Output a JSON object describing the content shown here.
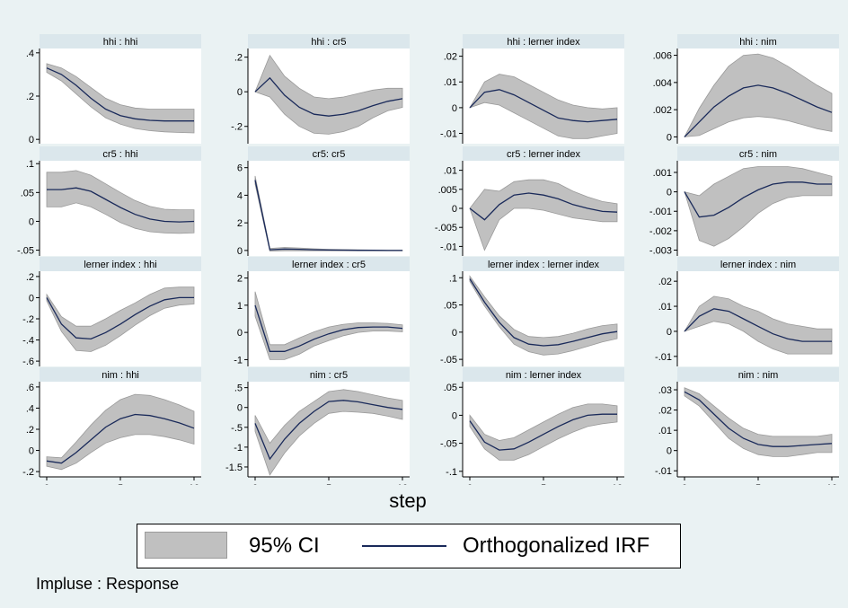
{
  "chart_data": {
    "type": "line",
    "x": [
      0,
      1,
      2,
      3,
      4,
      5,
      6,
      7,
      8,
      9,
      10
    ],
    "xlabel": "step",
    "xticks": [
      0,
      5,
      10
    ],
    "panels": [
      {
        "title": "hhi : hhi",
        "ylim": [
          -0.02,
          0.42
        ],
        "yticks": [
          {
            "v": 0.4,
            "l": ".4"
          },
          {
            "v": 0.2,
            "l": ".2"
          },
          {
            "v": 0,
            "l": "0"
          }
        ],
        "irf": [
          0.33,
          0.3,
          0.25,
          0.19,
          0.14,
          0.11,
          0.095,
          0.088,
          0.085,
          0.085,
          0.085
        ],
        "lo": [
          0.31,
          0.27,
          0.21,
          0.15,
          0.1,
          0.07,
          0.05,
          0.04,
          0.035,
          0.032,
          0.03
        ],
        "hi": [
          0.35,
          0.33,
          0.29,
          0.24,
          0.19,
          0.16,
          0.145,
          0.14,
          0.14,
          0.14,
          0.14
        ]
      },
      {
        "title": "hhi : cr5",
        "ylim": [
          -0.3,
          0.25
        ],
        "yticks": [
          {
            "v": 0.2,
            "l": ".2"
          },
          {
            "v": 0,
            "l": "0"
          },
          {
            "v": -0.2,
            "l": "-.2"
          }
        ],
        "irf": [
          0,
          0.08,
          -0.02,
          -0.09,
          -0.13,
          -0.14,
          -0.13,
          -0.11,
          -0.08,
          -0.055,
          -0.04
        ],
        "lo": [
          0,
          -0.03,
          -0.13,
          -0.2,
          -0.24,
          -0.245,
          -0.23,
          -0.2,
          -0.15,
          -0.11,
          -0.09
        ],
        "hi": [
          0,
          0.21,
          0.09,
          0.02,
          -0.03,
          -0.04,
          -0.03,
          -0.01,
          0.01,
          0.02,
          0.02
        ]
      },
      {
        "title": "hhi : lerner index",
        "ylim": [
          -0.014,
          0.023
        ],
        "yticks": [
          {
            "v": 0.02,
            "l": ".02"
          },
          {
            "v": 0.01,
            "l": ".01"
          },
          {
            "v": 0,
            "l": "0"
          },
          {
            "v": -0.01,
            "l": "-.01"
          }
        ],
        "irf": [
          0,
          0.006,
          0.007,
          0.005,
          0.002,
          -0.001,
          -0.004,
          -0.005,
          -0.0055,
          -0.005,
          -0.0045
        ],
        "lo": [
          0,
          0.002,
          0.001,
          -0.002,
          -0.005,
          -0.008,
          -0.011,
          -0.012,
          -0.012,
          -0.011,
          -0.01
        ],
        "hi": [
          0,
          0.01,
          0.013,
          0.012,
          0.009,
          0.006,
          0.003,
          0.001,
          0,
          -0.0005,
          0
        ]
      },
      {
        "title": "hhi : nim",
        "ylim": [
          -0.0005,
          0.0065
        ],
        "yticks": [
          {
            "v": 0.006,
            "l": ".006"
          },
          {
            "v": 0.004,
            "l": ".004"
          },
          {
            "v": 0.002,
            "l": ".002"
          },
          {
            "v": 0,
            "l": "0"
          }
        ],
        "irf": [
          0,
          0.0011,
          0.0022,
          0.003,
          0.0036,
          0.0038,
          0.0036,
          0.0032,
          0.0027,
          0.0022,
          0.0018
        ],
        "lo": [
          0,
          0.0001,
          0.0006,
          0.0011,
          0.0014,
          0.0015,
          0.0014,
          0.0012,
          0.0009,
          0.0006,
          0.0004
        ],
        "hi": [
          0,
          0.0021,
          0.0038,
          0.0052,
          0.006,
          0.0061,
          0.0058,
          0.0052,
          0.0045,
          0.0038,
          0.0032
        ]
      },
      {
        "title": "cr5 : hhi",
        "ylim": [
          -0.06,
          0.105
        ],
        "yticks": [
          {
            "v": 0.1,
            "l": ".1"
          },
          {
            "v": 0.05,
            "l": ".05"
          },
          {
            "v": 0,
            "l": "0"
          },
          {
            "v": -0.05,
            "l": "-.05"
          }
        ],
        "irf": [
          0.055,
          0.055,
          0.058,
          0.052,
          0.038,
          0.024,
          0.012,
          0.004,
          0,
          -0.001,
          0
        ],
        "lo": [
          0.025,
          0.025,
          0.032,
          0.025,
          0.012,
          -0.002,
          -0.012,
          -0.018,
          -0.02,
          -0.021,
          -0.02
        ],
        "hi": [
          0.085,
          0.085,
          0.088,
          0.08,
          0.065,
          0.05,
          0.036,
          0.026,
          0.021,
          0.02,
          0.02
        ]
      },
      {
        "title": "cr5: cr5",
        "ylim": [
          -0.4,
          6.5
        ],
        "yticks": [
          {
            "v": 6,
            "l": "6"
          },
          {
            "v": 4,
            "l": "4"
          },
          {
            "v": 2,
            "l": "2"
          },
          {
            "v": 0,
            "l": "0"
          }
        ],
        "irf": [
          5.1,
          0.05,
          0.1,
          0.08,
          0.05,
          0.03,
          0.02,
          0.01,
          0.01,
          0,
          0
        ],
        "lo": [
          4.8,
          -0.05,
          -0.02,
          -0.02,
          -0.02,
          -0.02,
          -0.02,
          -0.02,
          -0.02,
          -0.02,
          -0.02
        ],
        "hi": [
          5.4,
          0.15,
          0.22,
          0.18,
          0.12,
          0.08,
          0.06,
          0.04,
          0.03,
          0.02,
          0.02
        ]
      },
      {
        "title": "cr5 : lerner index",
        "ylim": [
          -0.0125,
          0.0125
        ],
        "yticks": [
          {
            "v": 0.01,
            "l": ".01"
          },
          {
            "v": 0.005,
            "l": ".005"
          },
          {
            "v": 0,
            "l": "0"
          },
          {
            "v": -0.005,
            "l": "-.005"
          },
          {
            "v": -0.01,
            "l": "-.01"
          }
        ],
        "irf": [
          0,
          -0.003,
          0.001,
          0.0035,
          0.004,
          0.0035,
          0.0025,
          0.001,
          0,
          -0.0008,
          -0.001
        ],
        "lo": [
          0,
          -0.011,
          -0.003,
          0,
          0,
          -0.0005,
          -0.0015,
          -0.0025,
          -0.003,
          -0.0035,
          -0.0035
        ],
        "hi": [
          0,
          0.005,
          0.0045,
          0.007,
          0.0075,
          0.0075,
          0.0065,
          0.0045,
          0.003,
          0.0018,
          0.0012
        ]
      },
      {
        "title": "cr5 : nim",
        "ylim": [
          -0.0033,
          0.0016
        ],
        "yticks": [
          {
            "v": 0.001,
            "l": ".001"
          },
          {
            "v": 0,
            "l": "0"
          },
          {
            "v": -0.001,
            "l": "-.001"
          },
          {
            "v": -0.002,
            "l": "-.002"
          },
          {
            "v": -0.003,
            "l": "-.003"
          }
        ],
        "irf": [
          0,
          -0.0013,
          -0.0012,
          -0.0008,
          -0.0003,
          0.0001,
          0.0004,
          0.0005,
          0.0005,
          0.0004,
          0.0004
        ],
        "lo": [
          0,
          -0.0025,
          -0.0028,
          -0.0024,
          -0.0018,
          -0.0011,
          -0.0006,
          -0.0003,
          -0.0002,
          -0.0002,
          -0.0002
        ],
        "hi": [
          0,
          -0.0002,
          0.0004,
          0.0008,
          0.0012,
          0.0013,
          0.0013,
          0.0013,
          0.0012,
          0.001,
          0.0008
        ]
      },
      {
        "title": "lerner index : hhi",
        "ylim": [
          -0.65,
          0.25
        ],
        "yticks": [
          {
            "v": 0.2,
            "l": ".2"
          },
          {
            "v": 0,
            "l": "0"
          },
          {
            "v": -0.2,
            "l": "-.2"
          },
          {
            "v": -0.4,
            "l": "-.4"
          },
          {
            "v": -0.6,
            "l": "-.6"
          }
        ],
        "irf": [
          0,
          -0.25,
          -0.38,
          -0.39,
          -0.33,
          -0.25,
          -0.16,
          -0.08,
          -0.02,
          0,
          0
        ],
        "lo": [
          -0.03,
          -0.32,
          -0.5,
          -0.51,
          -0.45,
          -0.36,
          -0.26,
          -0.17,
          -0.1,
          -0.07,
          -0.06
        ],
        "hi": [
          0.03,
          -0.18,
          -0.27,
          -0.27,
          -0.2,
          -0.12,
          -0.05,
          0.03,
          0.09,
          0.1,
          0.1
        ]
      },
      {
        "title": "lerner index : cr5",
        "ylim": [
          -1.25,
          2.25
        ],
        "yticks": [
          {
            "v": 2,
            "l": "2"
          },
          {
            "v": 1,
            "l": "1"
          },
          {
            "v": 0,
            "l": "0"
          },
          {
            "v": -1,
            "l": "-1"
          }
        ],
        "irf": [
          1.0,
          -0.7,
          -0.7,
          -0.5,
          -0.25,
          -0.05,
          0.1,
          0.18,
          0.2,
          0.2,
          0.15
        ],
        "lo": [
          0.6,
          -1.0,
          -1.0,
          -0.8,
          -0.5,
          -0.3,
          -0.12,
          0,
          0.05,
          0.05,
          0.02
        ],
        "hi": [
          1.5,
          -0.45,
          -0.45,
          -0.2,
          0.02,
          0.2,
          0.3,
          0.35,
          0.35,
          0.33,
          0.28
        ]
      },
      {
        "title": "lerner index : lerner index",
        "ylim": [
          -0.063,
          0.112
        ],
        "yticks": [
          {
            "v": 0.1,
            "l": ".1"
          },
          {
            "v": 0.05,
            "l": ".05"
          },
          {
            "v": 0,
            "l": "0"
          },
          {
            "v": -0.05,
            "l": "-.05"
          }
        ],
        "irf": [
          0.098,
          0.055,
          0.018,
          -0.01,
          -0.022,
          -0.025,
          -0.023,
          -0.017,
          -0.01,
          -0.003,
          0.001
        ],
        "lo": [
          0.093,
          0.048,
          0.01,
          -0.022,
          -0.036,
          -0.042,
          -0.04,
          -0.034,
          -0.026,
          -0.018,
          -0.012
        ],
        "hi": [
          0.103,
          0.065,
          0.03,
          0.005,
          -0.008,
          -0.01,
          -0.008,
          -0.002,
          0.006,
          0.012,
          0.015
        ]
      },
      {
        "title": "lerner index : nim",
        "ylim": [
          -0.014,
          0.024
        ],
        "yticks": [
          {
            "v": 0.02,
            "l": ".02"
          },
          {
            "v": 0.01,
            "l": ".01"
          },
          {
            "v": 0,
            "l": "0"
          },
          {
            "v": -0.01,
            "l": "-.01"
          }
        ],
        "irf": [
          0,
          0.006,
          0.009,
          0.008,
          0.005,
          0.002,
          -0.001,
          -0.003,
          -0.004,
          -0.004,
          -0.004
        ],
        "lo": [
          0,
          0.002,
          0.004,
          0.003,
          0,
          -0.004,
          -0.007,
          -0.009,
          -0.009,
          -0.009,
          -0.009
        ],
        "hi": [
          0,
          0.01,
          0.014,
          0.013,
          0.01,
          0.008,
          0.005,
          0.003,
          0.002,
          0.001,
          0.001
        ]
      },
      {
        "title": "nim : hhi",
        "ylim": [
          -0.25,
          0.65
        ],
        "yticks": [
          {
            "v": 0.6,
            "l": ".6"
          },
          {
            "v": 0.4,
            "l": ".4"
          },
          {
            "v": 0.2,
            "l": ".2"
          },
          {
            "v": 0,
            "l": "0"
          },
          {
            "v": -0.2,
            "l": "-.2"
          }
        ],
        "irf": [
          -0.1,
          -0.12,
          -0.02,
          0.1,
          0.22,
          0.3,
          0.34,
          0.33,
          0.3,
          0.26,
          0.21
        ],
        "lo": [
          -0.15,
          -0.18,
          -0.12,
          -0.02,
          0.07,
          0.12,
          0.15,
          0.15,
          0.13,
          0.1,
          0.06
        ],
        "hi": [
          -0.06,
          -0.07,
          0.08,
          0.24,
          0.38,
          0.48,
          0.53,
          0.52,
          0.48,
          0.43,
          0.37
        ]
      },
      {
        "title": "nim : cr5",
        "ylim": [
          -1.75,
          0.65
        ],
        "yticks": [
          {
            "v": 0.5,
            "l": ".5"
          },
          {
            "v": 0,
            "l": "0"
          },
          {
            "v": -0.5,
            "l": "-.5"
          },
          {
            "v": -1,
            "l": "-1"
          },
          {
            "v": -1.5,
            "l": "-1.5"
          }
        ],
        "irf": [
          -0.4,
          -1.3,
          -0.8,
          -0.4,
          -0.1,
          0.15,
          0.18,
          0.14,
          0.07,
          0,
          -0.05
        ],
        "lo": [
          -0.6,
          -1.7,
          -1.15,
          -0.72,
          -0.4,
          -0.15,
          -0.1,
          -0.12,
          -0.15,
          -0.22,
          -0.3
        ],
        "hi": [
          -0.2,
          -0.9,
          -0.45,
          -0.1,
          0.15,
          0.4,
          0.45,
          0.4,
          0.32,
          0.24,
          0.18
        ]
      },
      {
        "title": "nim : lerner index",
        "ylim": [
          -0.11,
          0.06
        ],
        "yticks": [
          {
            "v": 0.05,
            "l": ".05"
          },
          {
            "v": 0,
            "l": "0"
          },
          {
            "v": -0.05,
            "l": "-.05"
          },
          {
            "v": -0.1,
            "l": "-.1"
          }
        ],
        "irf": [
          -0.01,
          -0.048,
          -0.062,
          -0.06,
          -0.048,
          -0.034,
          -0.02,
          -0.008,
          0,
          0.002,
          0.002
        ],
        "lo": [
          -0.02,
          -0.06,
          -0.08,
          -0.08,
          -0.07,
          -0.056,
          -0.042,
          -0.03,
          -0.02,
          -0.015,
          -0.012
        ],
        "hi": [
          0,
          -0.034,
          -0.045,
          -0.04,
          -0.026,
          -0.012,
          0.002,
          0.014,
          0.02,
          0.02,
          0.017
        ]
      },
      {
        "title": "nim : nim",
        "ylim": [
          -0.013,
          0.034
        ],
        "yticks": [
          {
            "v": 0.03,
            "l": ".03"
          },
          {
            "v": 0.02,
            "l": ".02"
          },
          {
            "v": 0.01,
            "l": ".01"
          },
          {
            "v": 0,
            "l": "0"
          },
          {
            "v": -0.01,
            "l": "-.01"
          }
        ],
        "irf": [
          0.029,
          0.025,
          0.018,
          0.011,
          0.006,
          0.003,
          0.002,
          0.002,
          0.0025,
          0.003,
          0.0035
        ],
        "lo": [
          0.027,
          0.022,
          0.014,
          0.006,
          0.001,
          -0.002,
          -0.003,
          -0.003,
          -0.002,
          -0.001,
          -0.001
        ],
        "hi": [
          0.031,
          0.028,
          0.022,
          0.016,
          0.011,
          0.008,
          0.007,
          0.007,
          0.007,
          0.007,
          0.008
        ]
      }
    ]
  },
  "legend": {
    "ci_label": "95% CI",
    "irf_label": "Orthogonalized IRF"
  },
  "note": "Impluse : Response",
  "colors": {
    "band": "#c0c0c0",
    "band_edge": "#9a9a9a",
    "line": "#1a2a5a",
    "header": "#dbe7ec",
    "plot_bg": "#ffffff",
    "outer_bg": "#eaf2f3"
  }
}
